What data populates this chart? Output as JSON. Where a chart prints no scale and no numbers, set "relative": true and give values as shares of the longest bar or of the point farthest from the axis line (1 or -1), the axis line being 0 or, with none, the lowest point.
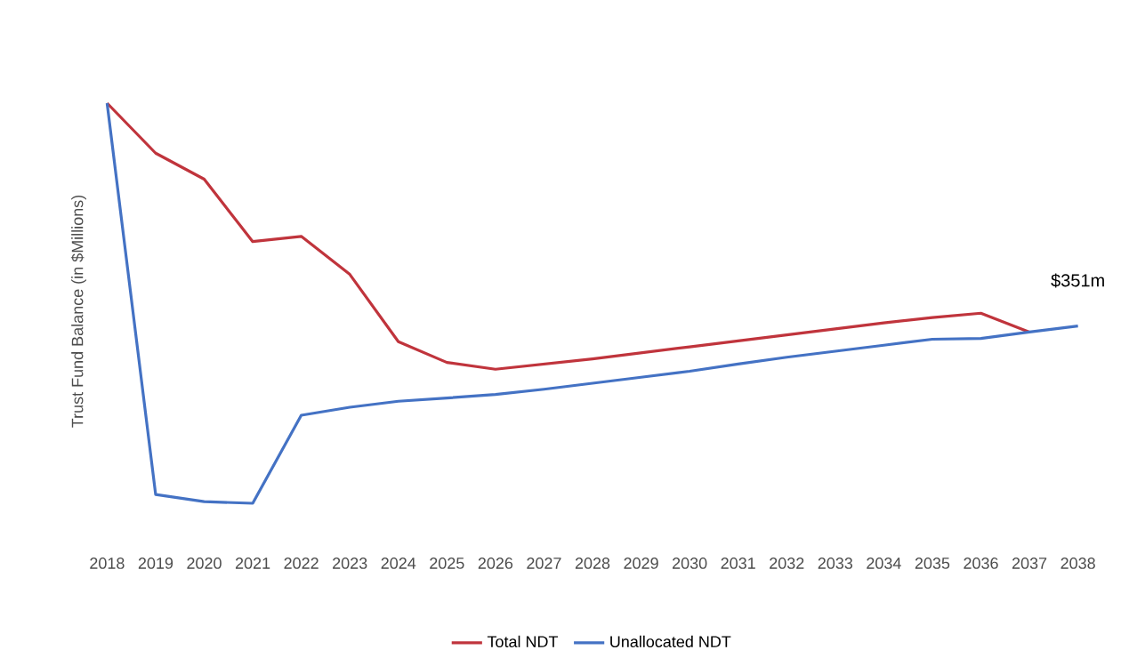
{
  "chart_data": {
    "type": "line",
    "ylabel": "Trust Fund Balance (in $Millions)",
    "relative": true,
    "categories": [
      "2018",
      "2019",
      "2020",
      "2021",
      "2022",
      "2023",
      "2024",
      "2025",
      "2026",
      "2027",
      "2028",
      "2029",
      "2030",
      "2031",
      "2032",
      "2033",
      "2034",
      "2035",
      "2036",
      "2037",
      "2038"
    ],
    "series": [
      {
        "name": "Total NDT",
        "color": "#c0343c",
        "values": [
          1,
          0.875,
          0.81,
          0.654,
          0.667,
          0.572,
          0.404,
          0.352,
          0.335,
          0.348,
          0.361,
          0.376,
          0.391,
          0.406,
          0.421,
          0.436,
          0.451,
          0.464,
          0.475,
          0.428,
          null
        ]
      },
      {
        "name": "Unallocated NDT",
        "color": "#4472c4",
        "values": [
          1,
          0.022,
          0.004,
          0,
          0.22,
          0.24,
          0.255,
          0.263,
          0.272,
          0.285,
          0.3,
          0.315,
          0.33,
          0.348,
          0.365,
          0.38,
          0.395,
          0.41,
          0.412,
          0.428,
          0.443
        ]
      }
    ],
    "annotations": [
      {
        "text": "$351m",
        "x": "2038",
        "y": 0.443
      }
    ],
    "legend": "bottom",
    "marker": "none",
    "line_style": "solid",
    "grid": false
  }
}
